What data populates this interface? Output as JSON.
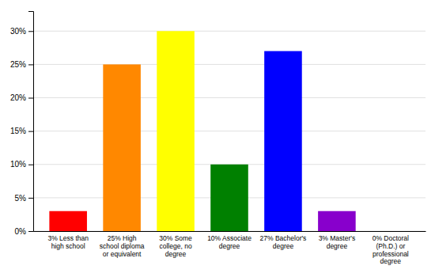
{
  "chart_data": {
    "type": "bar",
    "categories": [
      "3% Less than\nhigh school",
      "25% High\nschool diploma\nor equivalent",
      "30% Some\ncollege, no\ndegree",
      "10% Associate\ndegree",
      "27% Bachelor's\ndegree",
      "3% Master's\ndegree",
      "0% Doctoral\n(Ph.D.) or\nprofessional\ndegree"
    ],
    "values": [
      3,
      25,
      30,
      10,
      27,
      3,
      0
    ],
    "colors": [
      "#ff0000",
      "#ff8800",
      "#ffff00",
      "#008000",
      "#0000ff",
      "#8800cc",
      "#ff00ff"
    ],
    "ylim": [
      0,
      33
    ],
    "yticks": [
      {
        "value": 0,
        "label": "0%"
      },
      {
        "value": 5,
        "label": "5%"
      },
      {
        "value": 10,
        "label": "10%"
      },
      {
        "value": 15,
        "label": "15%"
      },
      {
        "value": 20,
        "label": "20%"
      },
      {
        "value": 25,
        "label": "25%"
      },
      {
        "value": 30,
        "label": "30%"
      }
    ],
    "grid": true
  }
}
